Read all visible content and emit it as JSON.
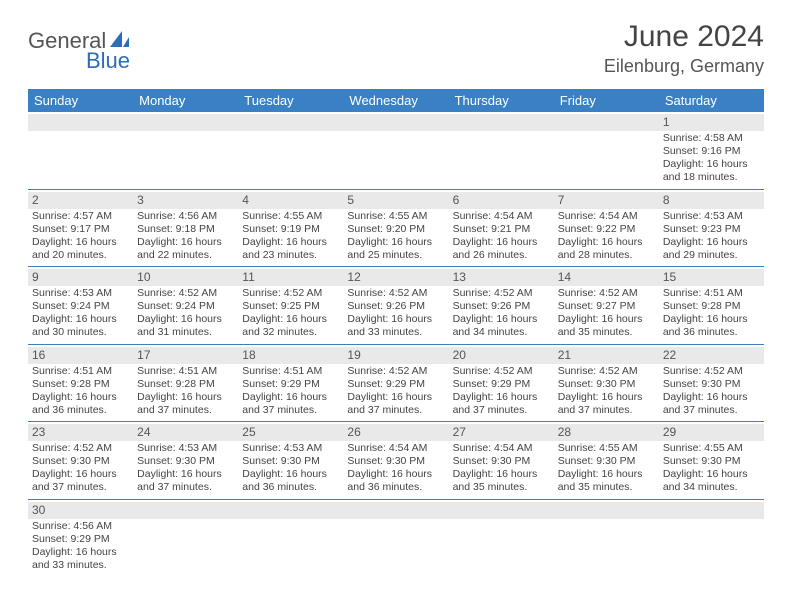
{
  "logo": {
    "part1": "General",
    "part2": "Blue"
  },
  "title": "June 2024",
  "location": "Eilenburg, Germany",
  "colors": {
    "header_bg": "#3a80c4",
    "header_text": "#ffffff",
    "daynum_bg": "#e9e9e9",
    "border": "#3a80c4",
    "text": "#444444"
  },
  "day_headers": [
    "Sunday",
    "Monday",
    "Tuesday",
    "Wednesday",
    "Thursday",
    "Friday",
    "Saturday"
  ],
  "weeks": [
    [
      null,
      null,
      null,
      null,
      null,
      null,
      {
        "n": "1",
        "sr": "Sunrise: 4:58 AM",
        "ss": "Sunset: 9:16 PM",
        "d1": "Daylight: 16 hours",
        "d2": "and 18 minutes."
      }
    ],
    [
      {
        "n": "2",
        "sr": "Sunrise: 4:57 AM",
        "ss": "Sunset: 9:17 PM",
        "d1": "Daylight: 16 hours",
        "d2": "and 20 minutes."
      },
      {
        "n": "3",
        "sr": "Sunrise: 4:56 AM",
        "ss": "Sunset: 9:18 PM",
        "d1": "Daylight: 16 hours",
        "d2": "and 22 minutes."
      },
      {
        "n": "4",
        "sr": "Sunrise: 4:55 AM",
        "ss": "Sunset: 9:19 PM",
        "d1": "Daylight: 16 hours",
        "d2": "and 23 minutes."
      },
      {
        "n": "5",
        "sr": "Sunrise: 4:55 AM",
        "ss": "Sunset: 9:20 PM",
        "d1": "Daylight: 16 hours",
        "d2": "and 25 minutes."
      },
      {
        "n": "6",
        "sr": "Sunrise: 4:54 AM",
        "ss": "Sunset: 9:21 PM",
        "d1": "Daylight: 16 hours",
        "d2": "and 26 minutes."
      },
      {
        "n": "7",
        "sr": "Sunrise: 4:54 AM",
        "ss": "Sunset: 9:22 PM",
        "d1": "Daylight: 16 hours",
        "d2": "and 28 minutes."
      },
      {
        "n": "8",
        "sr": "Sunrise: 4:53 AM",
        "ss": "Sunset: 9:23 PM",
        "d1": "Daylight: 16 hours",
        "d2": "and 29 minutes."
      }
    ],
    [
      {
        "n": "9",
        "sr": "Sunrise: 4:53 AM",
        "ss": "Sunset: 9:24 PM",
        "d1": "Daylight: 16 hours",
        "d2": "and 30 minutes."
      },
      {
        "n": "10",
        "sr": "Sunrise: 4:52 AM",
        "ss": "Sunset: 9:24 PM",
        "d1": "Daylight: 16 hours",
        "d2": "and 31 minutes."
      },
      {
        "n": "11",
        "sr": "Sunrise: 4:52 AM",
        "ss": "Sunset: 9:25 PM",
        "d1": "Daylight: 16 hours",
        "d2": "and 32 minutes."
      },
      {
        "n": "12",
        "sr": "Sunrise: 4:52 AM",
        "ss": "Sunset: 9:26 PM",
        "d1": "Daylight: 16 hours",
        "d2": "and 33 minutes."
      },
      {
        "n": "13",
        "sr": "Sunrise: 4:52 AM",
        "ss": "Sunset: 9:26 PM",
        "d1": "Daylight: 16 hours",
        "d2": "and 34 minutes."
      },
      {
        "n": "14",
        "sr": "Sunrise: 4:52 AM",
        "ss": "Sunset: 9:27 PM",
        "d1": "Daylight: 16 hours",
        "d2": "and 35 minutes."
      },
      {
        "n": "15",
        "sr": "Sunrise: 4:51 AM",
        "ss": "Sunset: 9:28 PM",
        "d1": "Daylight: 16 hours",
        "d2": "and 36 minutes."
      }
    ],
    [
      {
        "n": "16",
        "sr": "Sunrise: 4:51 AM",
        "ss": "Sunset: 9:28 PM",
        "d1": "Daylight: 16 hours",
        "d2": "and 36 minutes."
      },
      {
        "n": "17",
        "sr": "Sunrise: 4:51 AM",
        "ss": "Sunset: 9:28 PM",
        "d1": "Daylight: 16 hours",
        "d2": "and 37 minutes."
      },
      {
        "n": "18",
        "sr": "Sunrise: 4:51 AM",
        "ss": "Sunset: 9:29 PM",
        "d1": "Daylight: 16 hours",
        "d2": "and 37 minutes."
      },
      {
        "n": "19",
        "sr": "Sunrise: 4:52 AM",
        "ss": "Sunset: 9:29 PM",
        "d1": "Daylight: 16 hours",
        "d2": "and 37 minutes."
      },
      {
        "n": "20",
        "sr": "Sunrise: 4:52 AM",
        "ss": "Sunset: 9:29 PM",
        "d1": "Daylight: 16 hours",
        "d2": "and 37 minutes."
      },
      {
        "n": "21",
        "sr": "Sunrise: 4:52 AM",
        "ss": "Sunset: 9:30 PM",
        "d1": "Daylight: 16 hours",
        "d2": "and 37 minutes."
      },
      {
        "n": "22",
        "sr": "Sunrise: 4:52 AM",
        "ss": "Sunset: 9:30 PM",
        "d1": "Daylight: 16 hours",
        "d2": "and 37 minutes."
      }
    ],
    [
      {
        "n": "23",
        "sr": "Sunrise: 4:52 AM",
        "ss": "Sunset: 9:30 PM",
        "d1": "Daylight: 16 hours",
        "d2": "and 37 minutes."
      },
      {
        "n": "24",
        "sr": "Sunrise: 4:53 AM",
        "ss": "Sunset: 9:30 PM",
        "d1": "Daylight: 16 hours",
        "d2": "and 37 minutes."
      },
      {
        "n": "25",
        "sr": "Sunrise: 4:53 AM",
        "ss": "Sunset: 9:30 PM",
        "d1": "Daylight: 16 hours",
        "d2": "and 36 minutes."
      },
      {
        "n": "26",
        "sr": "Sunrise: 4:54 AM",
        "ss": "Sunset: 9:30 PM",
        "d1": "Daylight: 16 hours",
        "d2": "and 36 minutes."
      },
      {
        "n": "27",
        "sr": "Sunrise: 4:54 AM",
        "ss": "Sunset: 9:30 PM",
        "d1": "Daylight: 16 hours",
        "d2": "and 35 minutes."
      },
      {
        "n": "28",
        "sr": "Sunrise: 4:55 AM",
        "ss": "Sunset: 9:30 PM",
        "d1": "Daylight: 16 hours",
        "d2": "and 35 minutes."
      },
      {
        "n": "29",
        "sr": "Sunrise: 4:55 AM",
        "ss": "Sunset: 9:30 PM",
        "d1": "Daylight: 16 hours",
        "d2": "and 34 minutes."
      }
    ],
    [
      {
        "n": "30",
        "sr": "Sunrise: 4:56 AM",
        "ss": "Sunset: 9:29 PM",
        "d1": "Daylight: 16 hours",
        "d2": "and 33 minutes."
      },
      null,
      null,
      null,
      null,
      null,
      null
    ]
  ]
}
